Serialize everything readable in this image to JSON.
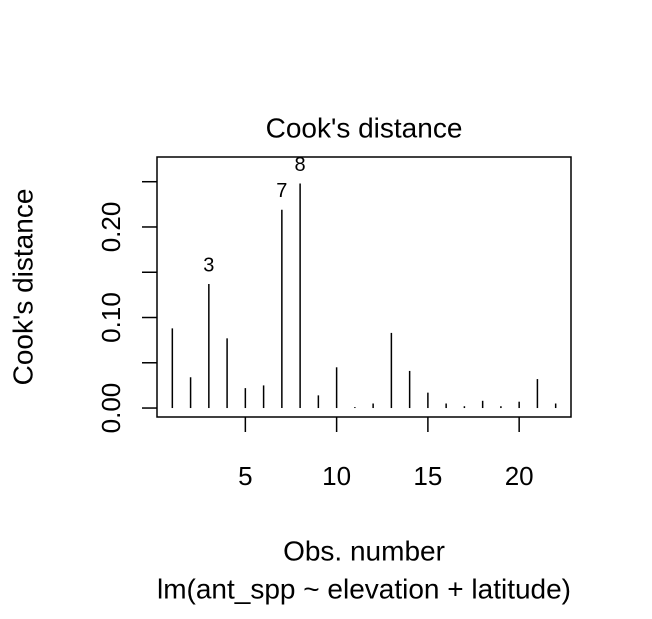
{
  "chart_data": {
    "type": "spike",
    "title": "Cook's distance",
    "xlabel": "Obs. number",
    "ylabel": "Cook's distance",
    "subtitle": "lm(ant_spp ~ elevation + latitude)",
    "x": [
      1,
      2,
      3,
      4,
      5,
      6,
      7,
      8,
      9,
      10,
      11,
      12,
      13,
      14,
      15,
      16,
      17,
      18,
      19,
      20,
      21,
      22
    ],
    "values": [
      0.088,
      0.034,
      0.137,
      0.077,
      0.022,
      0.025,
      0.219,
      0.248,
      0.014,
      0.045,
      0.001,
      0.005,
      0.083,
      0.041,
      0.017,
      0.005,
      0.002,
      0.008,
      0.002,
      0.007,
      0.032,
      0.005
    ],
    "labeled_points": [
      3,
      7,
      8
    ],
    "color": "#000000",
    "xlim": [
      0.16,
      22.84
    ],
    "ylim": [
      -0.0099,
      0.2773
    ],
    "xticks": [
      5,
      10,
      15,
      20
    ],
    "yticks": [
      {
        "value": 0,
        "label": "0.00"
      },
      {
        "value": 0.1,
        "label": "0.10"
      },
      {
        "value": 0.2,
        "label": "0.20"
      }
    ],
    "yminorticks": [
      0.05,
      0.15,
      0.25
    ]
  }
}
